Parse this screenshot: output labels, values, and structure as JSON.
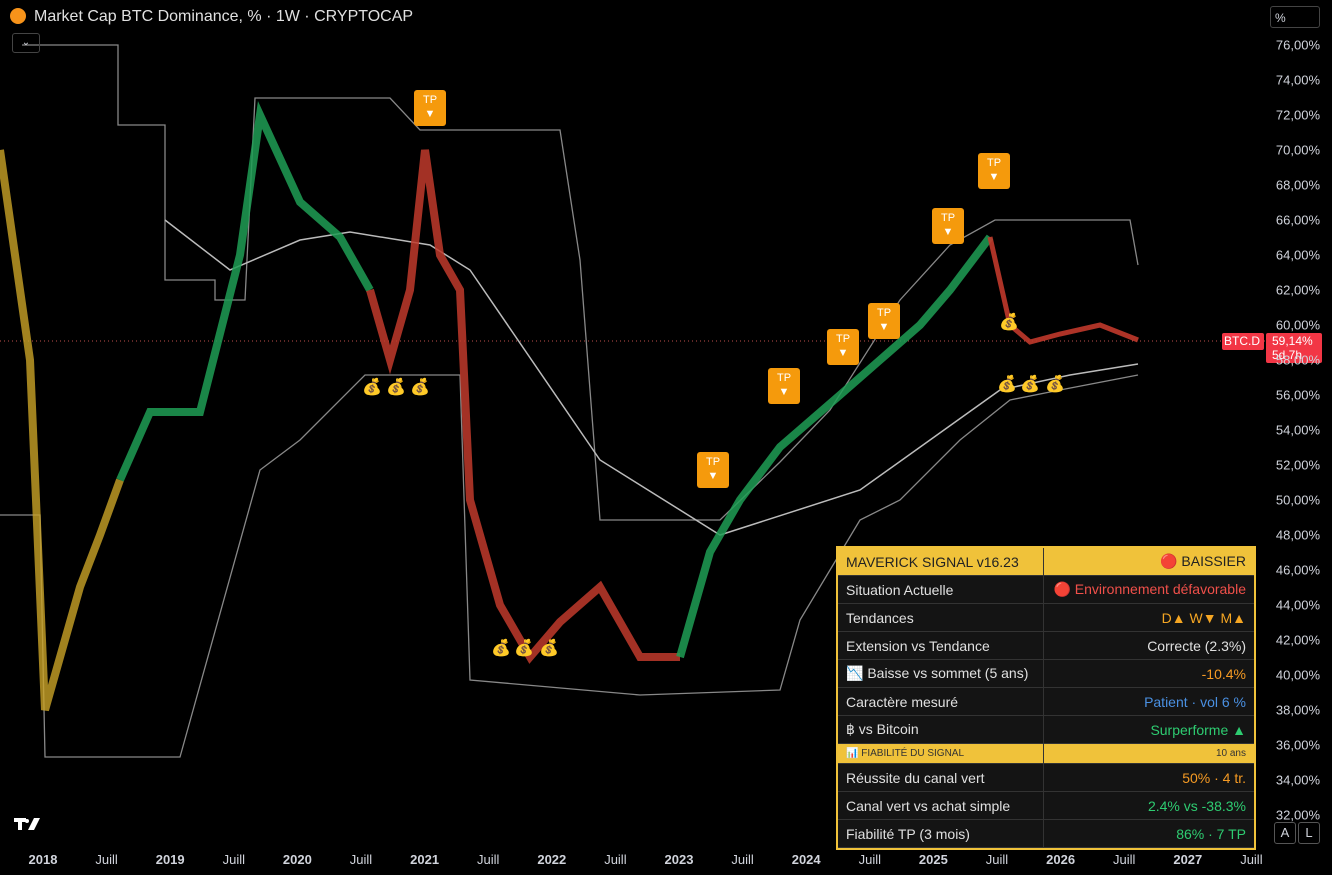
{
  "header": {
    "title": "Market Cap BTC Dominance, % · 1W · CRYPTOCAP",
    "unit_button": "%"
  },
  "y_axis": [
    "76,00%",
    "74,00%",
    "72,00%",
    "70,00%",
    "68,00%",
    "66,00%",
    "64,00%",
    "62,00%",
    "60,00%",
    "58,00%",
    "56,00%",
    "54,00%",
    "52,00%",
    "50,00%",
    "48,00%",
    "46,00%",
    "44,00%",
    "42,00%",
    "40,00%",
    "38,00%",
    "36,00%",
    "34,00%",
    "32,00%"
  ],
  "price_tag": {
    "symbol": "BTC.D",
    "price": "59,14%",
    "countdown": "5d 7h"
  },
  "x_axis": [
    "2018",
    "Juill",
    "2019",
    "Juill",
    "2020",
    "Juill",
    "2021",
    "Juill",
    "2022",
    "Juill",
    "2023",
    "Juill",
    "2024",
    "Juill",
    "2025",
    "Juill",
    "2026",
    "Juill",
    "2027",
    "Juill"
  ],
  "markers": {
    "tp_label": "TP",
    "tp_arrow": "▼"
  },
  "table": {
    "title": "MAVERICK SIGNAL v16.23",
    "status": "🔴 BAISSIER",
    "rows": [
      {
        "label": "Situation Actuelle",
        "value": "🔴 Environnement défavorable",
        "color": "#f0504a"
      },
      {
        "label": "Tendances",
        "value": "D▲  W▼  M▲",
        "color": "#f5a623"
      },
      {
        "label": "Extension vs Tendance",
        "value": "Correcte (2.3%)",
        "color": "#e0e0e0"
      },
      {
        "label": "📉 Baisse vs sommet (5 ans)",
        "value": "-10.4%",
        "color": "#f59a23"
      },
      {
        "label": "Caractère mesuré",
        "value": "Patient · vol 6 %",
        "color": "#4a90e2"
      },
      {
        "label": "฿ vs Bitcoin",
        "value": "Surperforme ▲",
        "color": "#2ecc71"
      }
    ],
    "section": {
      "label": "📊 FIABILITÉ DU SIGNAL",
      "value": "10 ans"
    },
    "rows2": [
      {
        "label": "Réussite du canal vert",
        "value": "50% · 4 tr.",
        "color": "#f59a23"
      },
      {
        "label": "Canal vert vs achat simple",
        "value": "2.4% vs -38.3%",
        "color": "#2ecc71"
      },
      {
        "label": "Fiabilité TP (3 mois)",
        "value": "86% · 7 TP",
        "color": "#2ecc71"
      }
    ]
  },
  "buttons": {
    "auto": "A",
    "log": "L"
  }
}
